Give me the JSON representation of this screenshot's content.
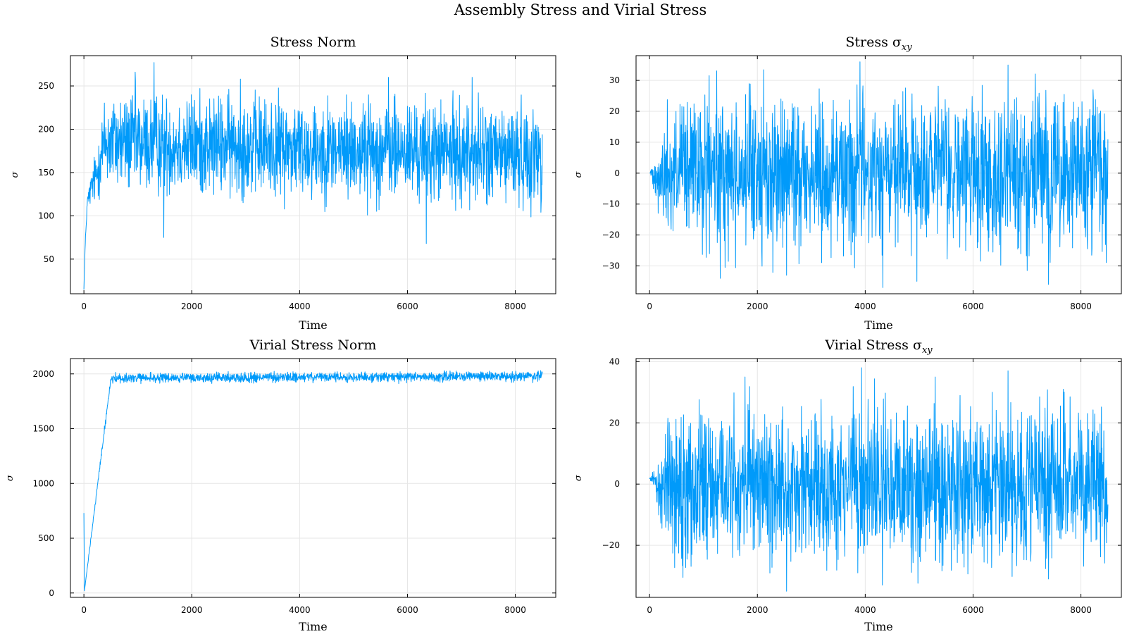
{
  "figure": {
    "title": "Assembly Stress and Virial Stress",
    "line_color": "#009AFA",
    "grid": true,
    "legend": "none"
  },
  "chart_data": [
    {
      "type": "line",
      "title": "Stress Norm",
      "xlabel": "Time",
      "ylabel": "σ",
      "xlim": [
        -250,
        8750
      ],
      "ylim": [
        10,
        285
      ],
      "xticks": [
        0,
        2000,
        4000,
        6000,
        8000
      ],
      "yticks": [
        50,
        100,
        150,
        200,
        250
      ],
      "x_range": [
        0,
        8500
      ],
      "points": 1700,
      "keypoints": [
        [
          0,
          15
        ],
        [
          20,
          60
        ],
        [
          60,
          115
        ],
        [
          150,
          135
        ],
        [
          250,
          150
        ],
        [
          300,
          170
        ],
        [
          400,
          185
        ],
        [
          8500,
          170
        ]
      ],
      "noise_amplitude": 28,
      "spikes": [
        [
          1300,
          277
        ],
        [
          950,
          266
        ],
        [
          1480,
          75
        ],
        [
          6350,
          68
        ],
        [
          5650,
          260
        ],
        [
          7200,
          260
        ],
        [
          2900,
          258
        ]
      ],
      "values_min": 15,
      "values_max": 277
    },
    {
      "type": "line",
      "title": "Stress σ",
      "title_subscript": "xy",
      "xlabel": "Time",
      "ylabel": "σ",
      "xlim": [
        -250,
        8750
      ],
      "ylim": [
        -39,
        38
      ],
      "xticks": [
        0,
        2000,
        4000,
        6000,
        8000
      ],
      "yticks": [
        -30,
        -20,
        -10,
        0,
        10,
        20,
        30
      ],
      "x_range": [
        0,
        8500
      ],
      "points": 1700,
      "keypoints": [
        [
          0,
          0
        ],
        [
          100,
          0
        ],
        [
          200,
          -2
        ],
        [
          350,
          0
        ],
        [
          8400,
          0
        ],
        [
          8500,
          -5
        ]
      ],
      "noise_amplitude": 12,
      "spikes": [
        [
          3900,
          36
        ],
        [
          4330,
          -37
        ],
        [
          6650,
          35
        ],
        [
          7400,
          -36
        ],
        [
          4960,
          -35
        ],
        [
          2540,
          -33
        ],
        [
          1310,
          -34
        ]
      ],
      "values_min": -37,
      "values_max": 36
    },
    {
      "type": "line",
      "title": "Virial Stress Norm",
      "xlabel": "Time",
      "ylabel": "σ",
      "xlim": [
        -250,
        8750
      ],
      "ylim": [
        -40,
        2140
      ],
      "xticks": [
        0,
        2000,
        4000,
        6000,
        8000
      ],
      "yticks": [
        0,
        500,
        1000,
        1500,
        2000
      ],
      "x_range": [
        0,
        8500
      ],
      "points": 1700,
      "keypoints": [
        [
          0,
          730
        ],
        [
          10,
          20
        ],
        [
          500,
          1960
        ],
        [
          8500,
          1980
        ]
      ],
      "noise_amplitude": 22,
      "spikes": [],
      "values_min": 20,
      "values_max": 2060
    },
    {
      "type": "line",
      "title": "Virial Stress σ",
      "title_subscript": "xy",
      "xlabel": "Time",
      "ylabel": "σ",
      "xlim": [
        -250,
        8750
      ],
      "ylim": [
        -37,
        41
      ],
      "xticks": [
        0,
        2000,
        4000,
        6000,
        8000
      ],
      "yticks": [
        -20,
        0,
        20,
        40
      ],
      "x_range": [
        0,
        8500
      ],
      "points": 1700,
      "keypoints": [
        [
          0,
          2
        ],
        [
          100,
          2
        ],
        [
          200,
          -3
        ],
        [
          300,
          0
        ],
        [
          8400,
          0
        ],
        [
          8500,
          -10
        ]
      ],
      "noise_amplitude": 12,
      "spikes": [
        [
          3930,
          38
        ],
        [
          4320,
          -33
        ],
        [
          6650,
          37
        ],
        [
          2540,
          -35
        ],
        [
          1770,
          35
        ],
        [
          5300,
          35
        ],
        [
          7400,
          -31
        ]
      ],
      "values_min": -35,
      "values_max": 38
    }
  ]
}
